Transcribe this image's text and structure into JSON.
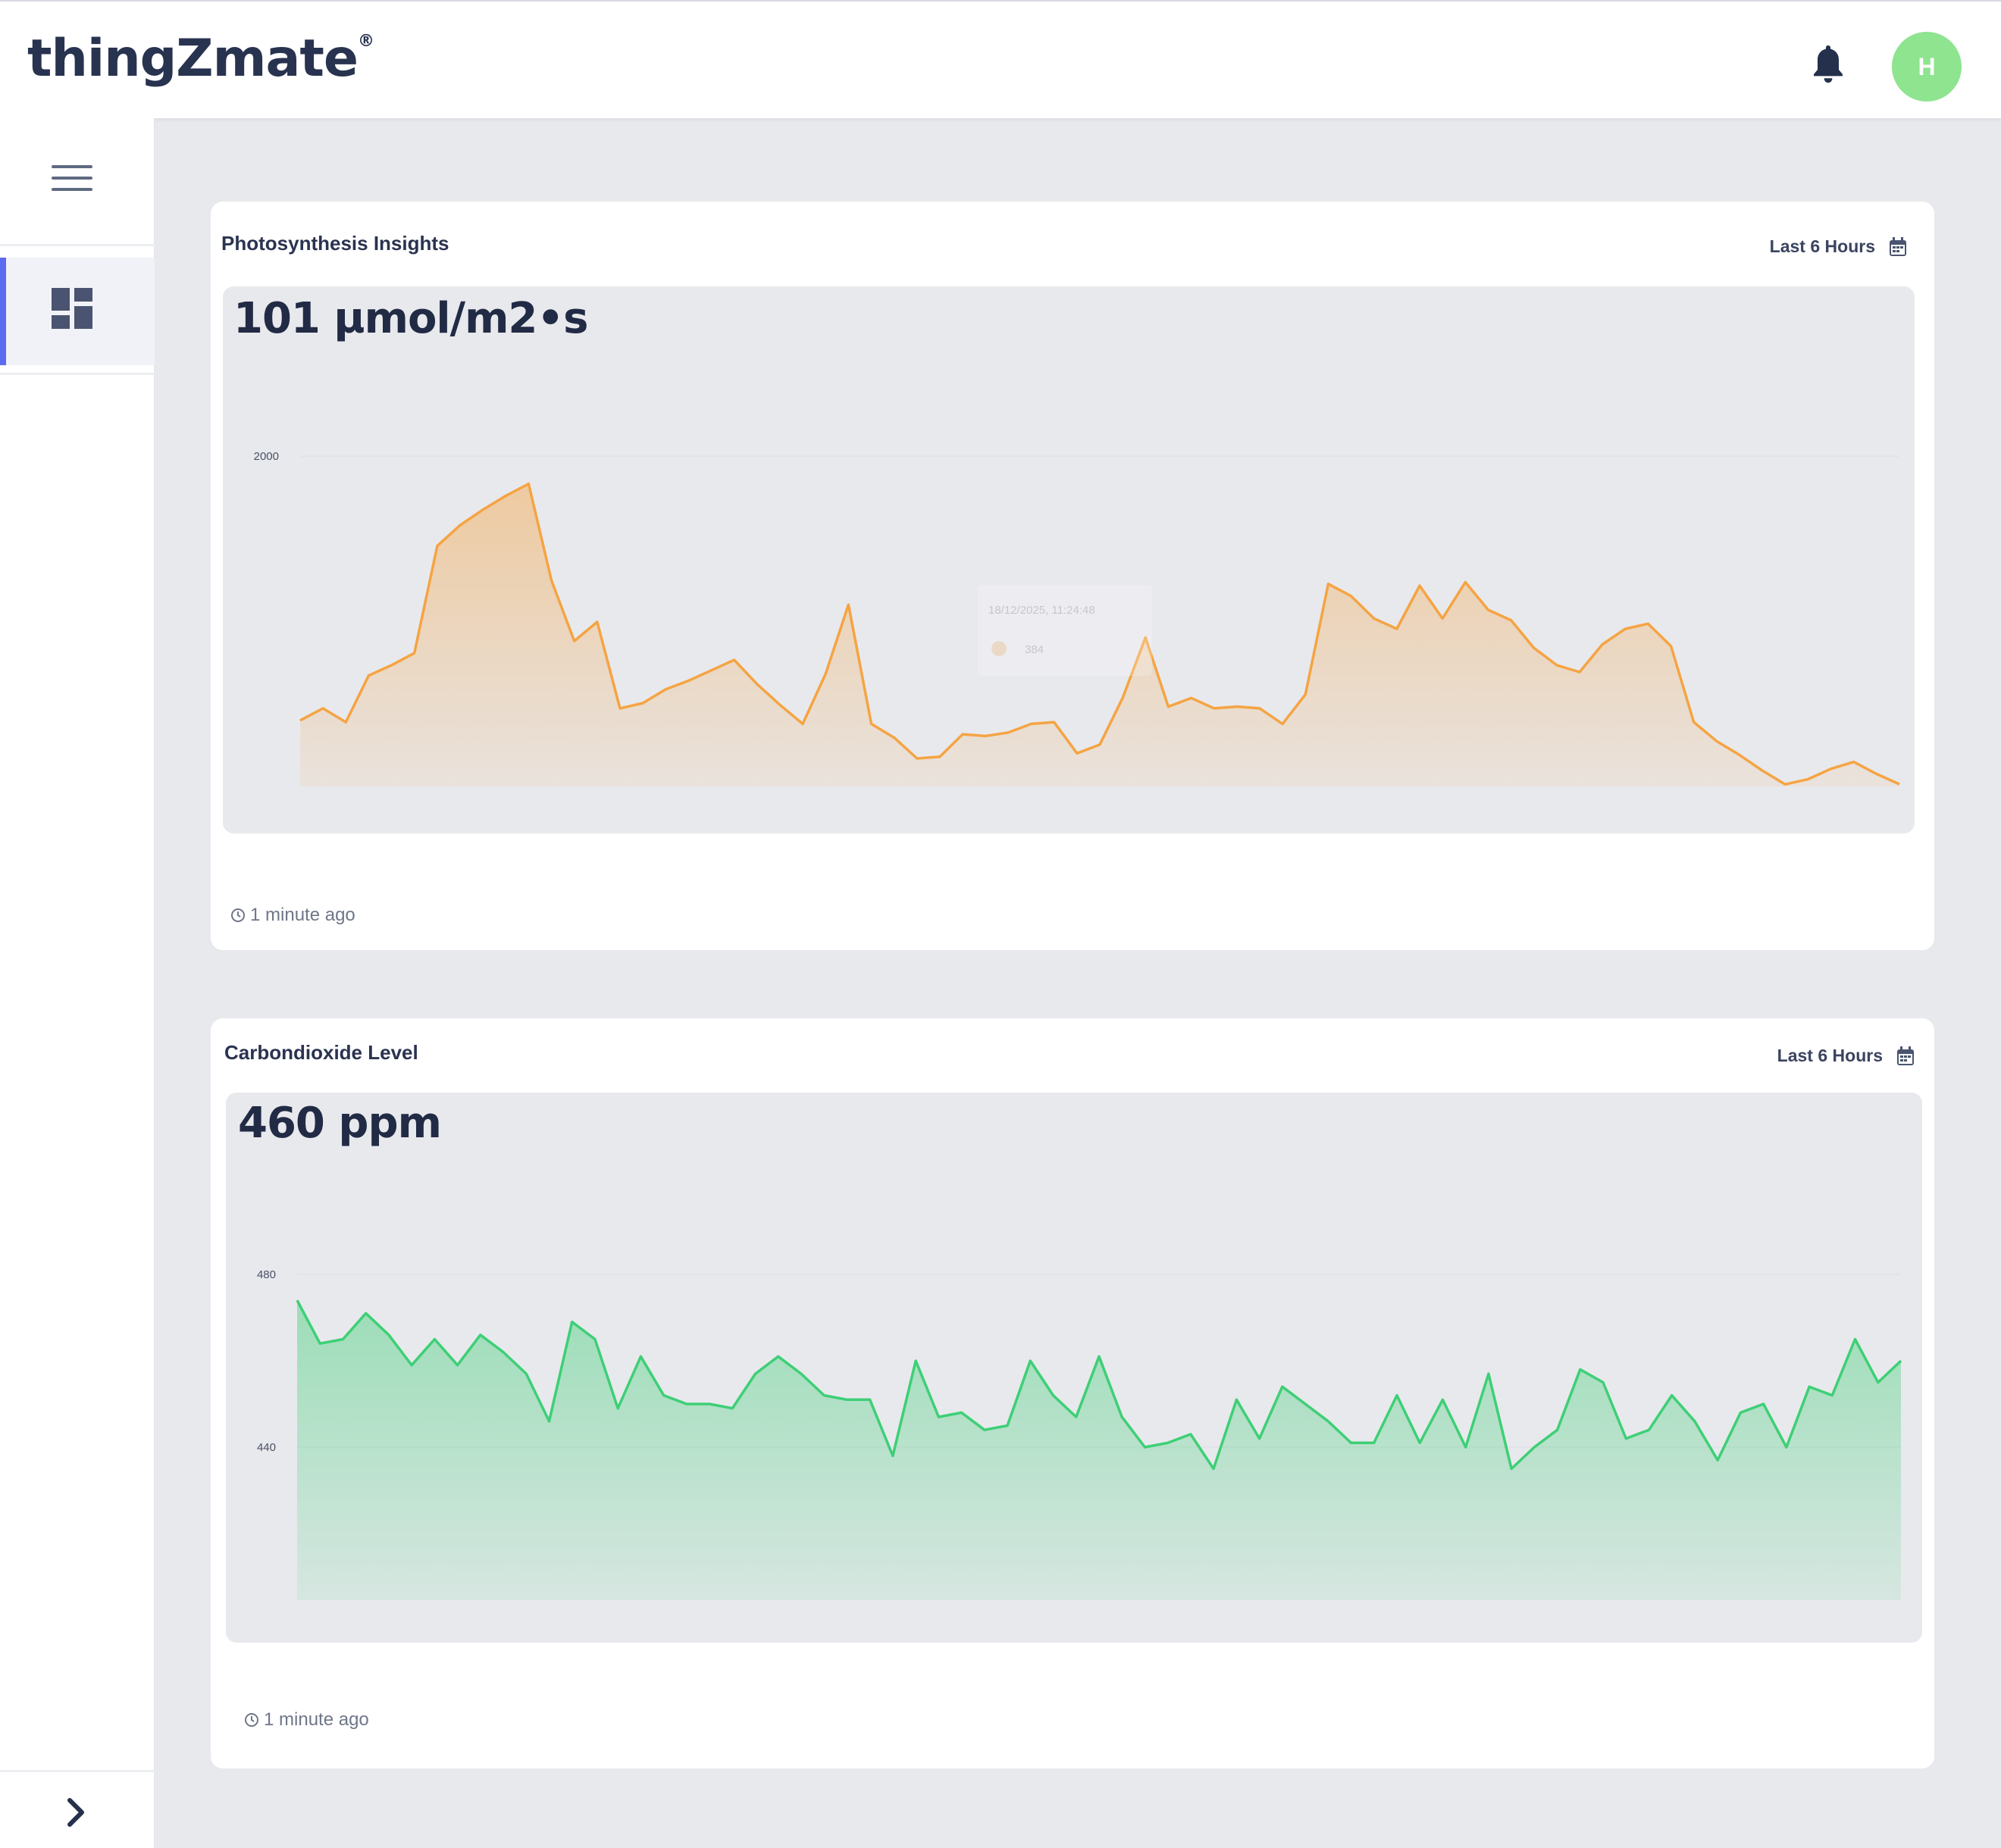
{
  "header": {
    "logo_text": "thingZmate",
    "logo_mark": "®",
    "notification_icon": "bell-icon",
    "avatar_initial": "H",
    "avatar_color": "#8ee48f"
  },
  "sidebar": {
    "menu_icon": "hamburger-menu-icon",
    "items": [
      {
        "icon": "dashboard-icon",
        "active": true
      }
    ],
    "expand_icon": "chevron-right-icon"
  },
  "widgets": [
    {
      "title": "Photosynthesis Insights",
      "range_label": "Last 6 Hours",
      "value": "101 µmol/m2•s",
      "updated": "1 minute ago",
      "color": "#f5a443",
      "chart_data": {
        "type": "area",
        "ylim": [
          0,
          2000
        ],
        "yticks": [
          "2000",
          "0"
        ],
        "values": [
          470,
          540,
          460,
          730,
          790,
          860,
          1480,
          1600,
          1690,
          1770,
          1840,
          1280,
          930,
          1040,
          540,
          570,
          650,
          700,
          760,
          820,
          680,
          560,
          450,
          740,
          1140,
          450,
          370,
          250,
          260,
          390,
          380,
          400,
          450,
          460,
          280,
          330,
          600,
          950,
          550,
          600,
          540,
          550,
          540,
          450,
          620,
          1260,
          1190,
          1060,
          1000,
          1250,
          1060,
          1270,
          1110,
          1050,
          890,
          790,
          750,
          910,
          1000,
          1030,
          900,
          460,
          350,
          270,
          180,
          100,
          130,
          190,
          230,
          160,
          101
        ],
        "tooltip": {
          "time": "18/12/2025, 11:24:48",
          "value": "384"
        }
      }
    },
    {
      "title": "Carbondioxide Level",
      "range_label": "Last 6 Hours",
      "value": "460 ppm",
      "updated": "1 minute ago",
      "color": "#3ecf76",
      "chart_data": {
        "type": "area",
        "ylim": [
          400,
          480
        ],
        "yticks": [
          "480",
          "440",
          "400"
        ],
        "values": [
          474,
          464,
          465,
          471,
          466,
          459,
          465,
          459,
          466,
          462,
          457,
          446,
          469,
          465,
          449,
          461,
          452,
          450,
          450,
          449,
          457,
          461,
          457,
          452,
          451,
          451,
          438,
          460,
          447,
          448,
          444,
          445,
          460,
          452,
          447,
          461,
          447,
          440,
          441,
          443,
          435,
          451,
          442,
          454,
          450,
          446,
          441,
          441,
          452,
          441,
          451,
          440,
          457,
          435,
          440,
          444,
          458,
          455,
          442,
          444,
          452,
          446,
          437,
          448,
          450,
          440,
          454,
          452,
          465,
          455,
          460
        ]
      }
    }
  ]
}
